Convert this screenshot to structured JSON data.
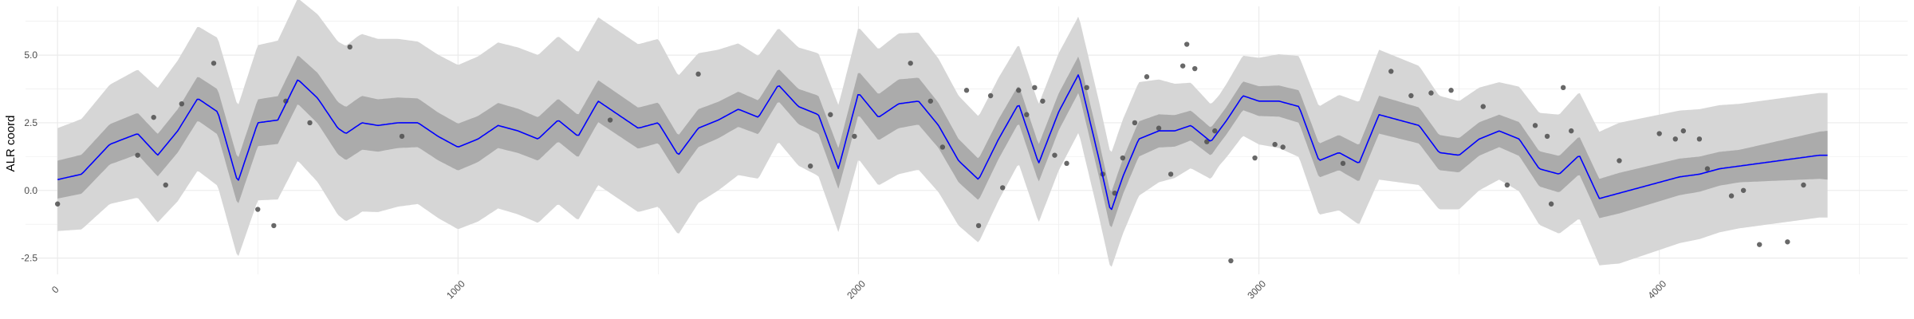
{
  "chart_data": {
    "type": "line",
    "title": "",
    "xlabel": "",
    "ylabel": "ALR coord",
    "xlim": [
      -80,
      4620
    ],
    "ylim": [
      -3.1,
      6.8
    ],
    "x_ticks": [
      0,
      1000,
      2000,
      3000,
      4000
    ],
    "x_tick_labels": [
      "0",
      "1000",
      "2000",
      "3000",
      "4000"
    ],
    "x_tick_rotation": -45,
    "y_ticks": [
      -2.5,
      0,
      2.5,
      5
    ],
    "y_tick_labels": [
      "-2.5",
      "0.0",
      "2.5",
      "5.0"
    ],
    "grid": true,
    "legend": "none",
    "colors": {
      "mean_line": "#0000ff",
      "inner_band": "#ababab",
      "outer_band": "#d6d6d6",
      "points": "#4d4d4d",
      "grid": "#ebebeb"
    },
    "series": [
      {
        "role": "posterior_mean",
        "x": [
          0,
          60,
          130,
          200,
          250,
          300,
          350,
          400,
          450,
          500,
          550,
          600,
          650,
          700,
          720,
          760,
          800,
          850,
          900,
          950,
          1000,
          1050,
          1100,
          1150,
          1200,
          1250,
          1300,
          1350,
          1400,
          1450,
          1500,
          1550,
          1600,
          1650,
          1700,
          1750,
          1800,
          1850,
          1900,
          1950,
          2000,
          2050,
          2100,
          2150,
          2200,
          2250,
          2300,
          2350,
          2400,
          2450,
          2500,
          2550,
          2600,
          2630,
          2660,
          2700,
          2750,
          2790,
          2830,
          2880,
          2920,
          2960,
          3000,
          3050,
          3100,
          3150,
          3200,
          3250,
          3300,
          3350,
          3400,
          3450,
          3500,
          3550,
          3600,
          3650,
          3700,
          3750,
          3800,
          3850,
          3900,
          3950,
          4000,
          4050,
          4100,
          4150,
          4200,
          4250,
          4300,
          4350,
          4400,
          4420
        ],
        "y": [
          0.4,
          0.6,
          1.7,
          2.1,
          1.3,
          2.2,
          3.4,
          2.9,
          0.3,
          2.5,
          2.6,
          4.1,
          3.4,
          2.3,
          2.1,
          2.5,
          2.4,
          2.5,
          2.5,
          2.0,
          1.6,
          1.9,
          2.4,
          2.2,
          1.9,
          2.6,
          2.0,
          3.3,
          2.8,
          2.3,
          2.5,
          1.3,
          2.3,
          2.6,
          3.0,
          2.7,
          3.9,
          3.1,
          2.8,
          0.8,
          3.6,
          2.7,
          3.2,
          3.3,
          2.4,
          1.1,
          0.4,
          1.9,
          3.2,
          1.0,
          2.9,
          4.3,
          1.2,
          -0.8,
          0.5,
          1.9,
          2.2,
          2.2,
          2.4,
          1.8,
          2.6,
          3.5,
          3.3,
          3.3,
          3.1,
          1.1,
          1.4,
          1.0,
          2.8,
          2.6,
          2.4,
          1.4,
          1.3,
          1.9,
          2.2,
          1.9,
          0.8,
          0.6,
          1.3,
          -0.3,
          -0.1,
          0.1,
          0.3,
          0.5,
          0.6,
          0.8,
          0.9,
          1.0,
          1.1,
          1.2,
          1.3,
          1.3
        ]
      },
      {
        "role": "inner_interval_halfwidth",
        "x": [
          0,
          300,
          600,
          750,
          900,
          1200,
          1500,
          1800,
          2100,
          2400,
          2700,
          2900,
          3000,
          3300,
          3600,
          3900,
          4200,
          4420
        ],
        "y": [
          0.7,
          0.8,
          0.9,
          1.0,
          0.9,
          0.8,
          0.75,
          0.6,
          0.9,
          0.7,
          0.65,
          0.5,
          0.55,
          0.7,
          0.6,
          0.75,
          0.6,
          0.9
        ]
      },
      {
        "role": "outer_interval_halfwidth",
        "x": [
          0,
          300,
          600,
          750,
          900,
          1200,
          1500,
          1800,
          2100,
          2400,
          2700,
          2900,
          3000,
          3300,
          3600,
          3900,
          4200,
          4420
        ],
        "y": [
          1.9,
          2.6,
          3.0,
          3.3,
          3.0,
          3.1,
          3.1,
          2.1,
          2.6,
          2.2,
          2.1,
          1.3,
          1.6,
          2.4,
          1.8,
          2.6,
          2.3,
          2.3
        ]
      },
      {
        "role": "observations",
        "x": [
          0,
          200,
          240,
          270,
          310,
          390,
          500,
          540,
          570,
          630,
          730,
          860,
          1380,
          1600,
          1880,
          1930,
          1990,
          2130,
          2180,
          2210,
          2270,
          2300,
          2330,
          2360,
          2400,
          2420,
          2440,
          2460,
          2490,
          2520,
          2570,
          2610,
          2640,
          2660,
          2690,
          2720,
          2750,
          2780,
          2810,
          2820,
          2840,
          2870,
          2890,
          2930,
          2990,
          3040,
          3060,
          3210,
          3330,
          3380,
          3430,
          3480,
          3560,
          3620,
          3690,
          3720,
          3730,
          3760,
          3780,
          3900,
          4000,
          4040,
          4060,
          4100,
          4120,
          4180,
          4210,
          4250,
          4320,
          4360
        ],
        "y": [
          -0.5,
          1.3,
          2.7,
          0.2,
          3.2,
          4.7,
          -0.7,
          -1.3,
          3.3,
          2.5,
          5.3,
          2.0,
          2.6,
          4.3,
          0.9,
          2.8,
          2.0,
          4.7,
          3.3,
          1.6,
          3.7,
          -1.3,
          3.5,
          0.1,
          3.7,
          2.8,
          3.8,
          3.3,
          1.3,
          1.0,
          3.8,
          0.6,
          -0.1,
          1.2,
          2.5,
          4.2,
          2.3,
          0.6,
          4.6,
          5.4,
          4.5,
          1.8,
          2.2,
          -2.6,
          1.2,
          1.7,
          1.6,
          1.0,
          4.4,
          3.5,
          3.6,
          3.7,
          3.1,
          0.2,
          2.4,
          2.0,
          -0.5,
          3.8,
          2.2,
          1.1,
          2.1,
          1.9,
          2.2,
          1.9,
          0.8,
          -0.2,
          0.0,
          -2.0,
          -1.9,
          0.2
        ]
      }
    ]
  }
}
